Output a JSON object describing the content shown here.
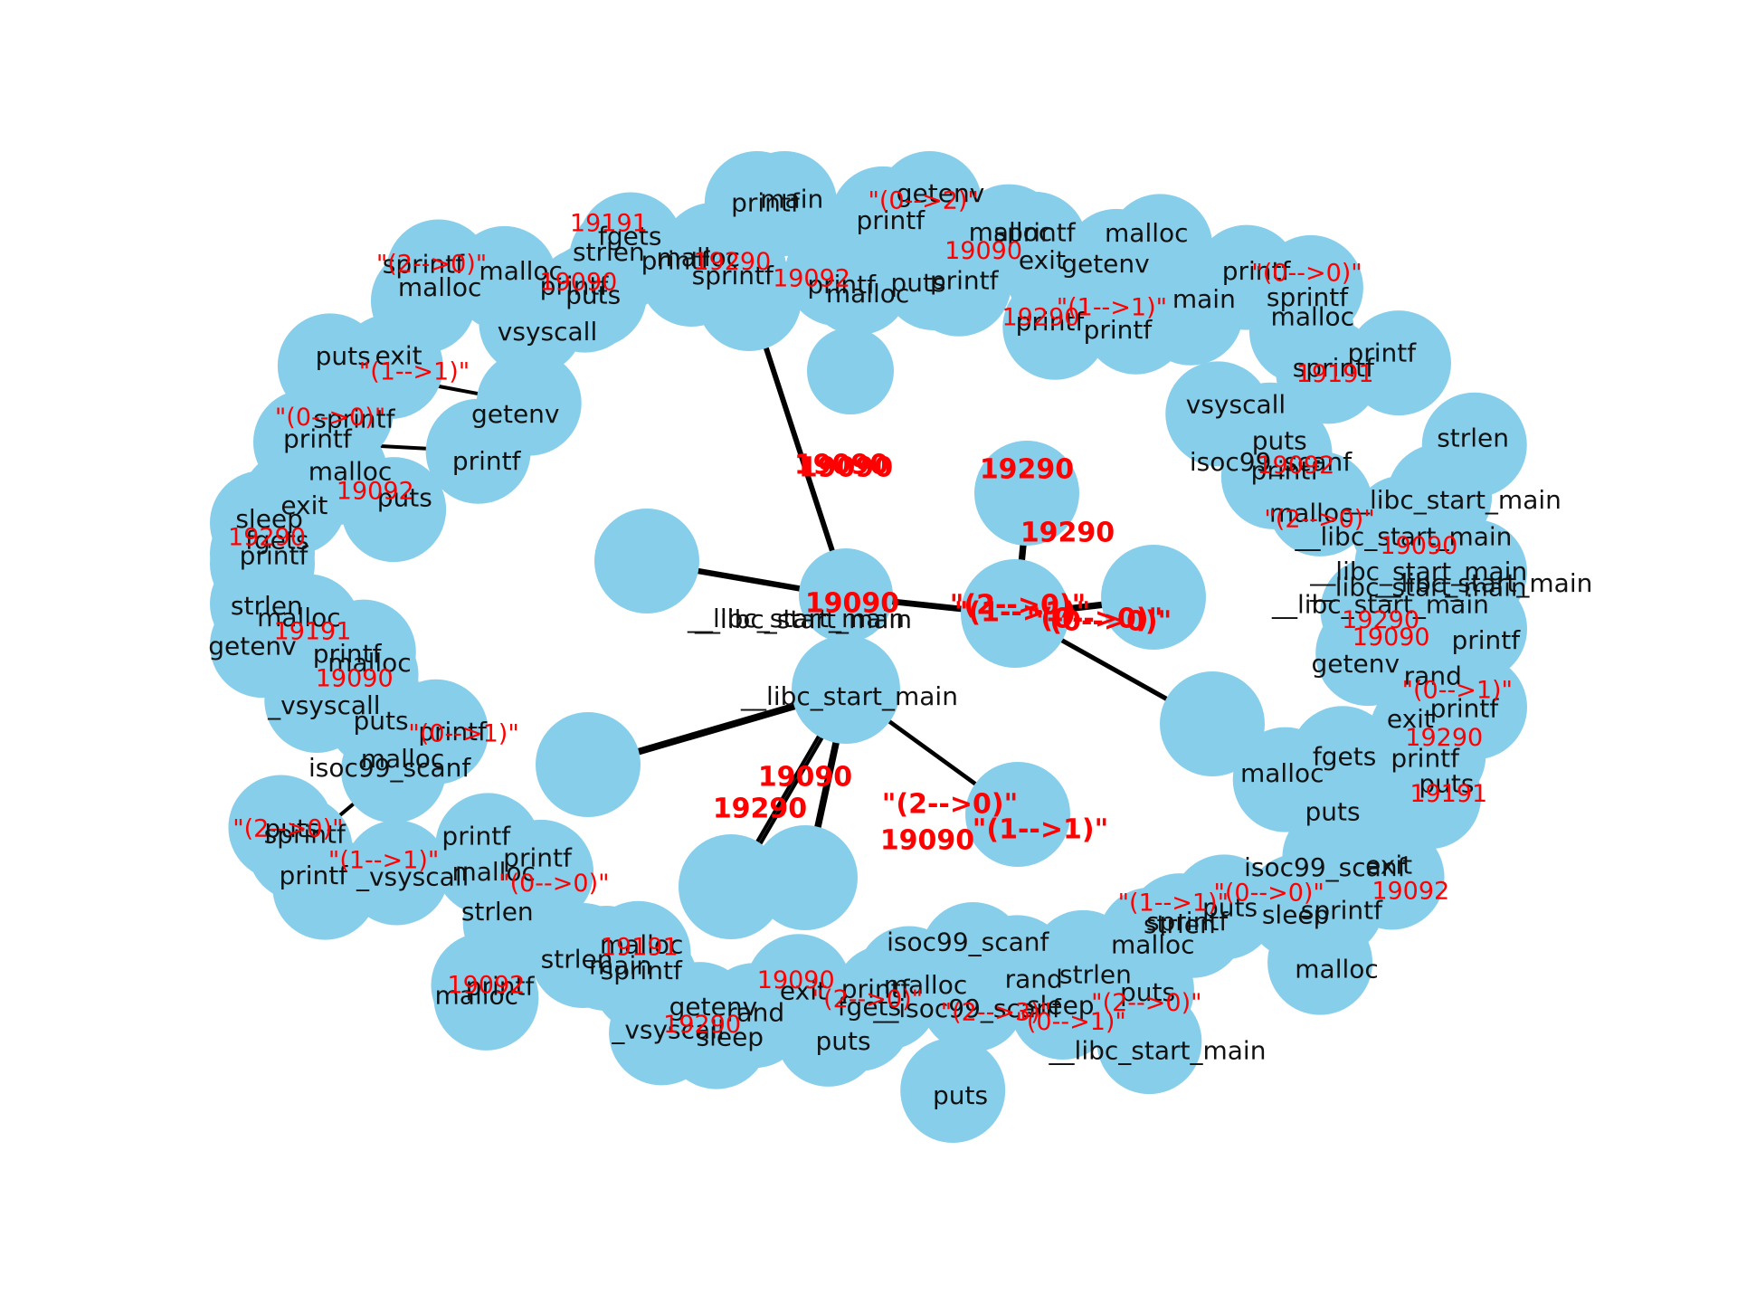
{
  "graph": {
    "node_color": "#87ceeb",
    "edge_color": "#000000",
    "node_label_color": "#111111",
    "edge_label_color": "#ff0000",
    "center_labels": [
      "__libc_start_main",
      "__libc_start_main",
      "__libc_start_main"
    ],
    "hub_edge_labels": [
      "19090",
      "19290",
      "19090",
      "19290",
      "19090",
      "\"(2-->0)\"",
      "19090",
      "\"(1-->1)\"",
      "\"(2-->0)\"",
      "\"(1-->1)\"",
      "\"(0-->0)\"",
      "\"(0-->0)\"",
      "19290",
      "19090"
    ],
    "ring_node_labels": [
      "printf",
      "getenv",
      "rand",
      "printf",
      "exit",
      "printf",
      "fgets",
      "puts",
      "malloc",
      "puts",
      "exit",
      "isoc99_scanf",
      "sprintf",
      "sleep",
      "malloc",
      "puts",
      "sprintf",
      "strlen",
      "malloc",
      "puts",
      "__libc_start_main",
      "strlen",
      "sleep",
      "rand",
      "isoc99_scanf",
      "__isoc99_scanf",
      "puts",
      "malloc",
      "printf",
      "fgets",
      "puts",
      "exit",
      "rand",
      "sleep",
      "getenv",
      "_vsyscall",
      "sprintf",
      "malloc",
      "main",
      "strlen",
      "printf",
      "malloc",
      "strlen",
      "printf",
      "malloc",
      "printf",
      "_vsyscall",
      "printf",
      "sprintf",
      "puts",
      "malloc",
      "isoc99_scanf",
      "printf",
      "puts",
      "_vsyscall",
      "malloc",
      "printf",
      "getenv",
      "malloc",
      "strlen",
      "printf",
      "fgets",
      "sleep",
      "exit",
      "puts",
      "malloc",
      "printf",
      "sprintf",
      "printf",
      "puts",
      "exit",
      "getenv",
      "malloc",
      "sprintf",
      "vsyscall",
      "malloc",
      "printf",
      "puts",
      "strlen",
      "fgets",
      "printf",
      "malloc",
      "sprintf",
      "printf",
      "main",
      "printf",
      "malloc",
      "printf",
      "getenv",
      "puts",
      "printf",
      "malloc",
      "sprintf",
      "exit",
      "printf",
      "getenv",
      "malloc",
      "printf",
      "main",
      "printf",
      "sprintf",
      "malloc",
      "vsyscall",
      "sprintf",
      "printf",
      "puts",
      "isoc99_scanf",
      "printf",
      "strlen",
      "malloc",
      "__libc_start_main",
      "__libc_start_main",
      "__libc_start_main",
      "__libc_start_main",
      "__libc_start_main",
      "__libc_start_main"
    ],
    "ring_edge_labels": [
      "19090",
      "19290",
      "19191",
      "19092",
      "\"(0-->0)\"",
      "\"(1-->1)\"",
      "\"(2-->0)\"",
      "\"(0-->1)\"",
      "\"(2-->3)\"",
      "\"(2-->0)\"",
      "19090",
      "19290",
      "19191",
      "19092",
      "\"(0-->0)\"",
      "\"(1-->1)\"",
      "\"(2-->0)\"",
      "\"(0-->1)\"",
      "19090",
      "19191",
      "19290",
      "19092",
      "\"(0-->0)\"",
      "\"(1-->1)\"",
      "\"(2-->0)\"",
      "19090",
      "19191",
      "19290",
      "19092",
      "\"(0-->2)\"",
      "19090",
      "19290",
      "\"(1-->1)\"",
      "\"(0-->0)\"",
      "19191",
      "19092",
      "\"(2-->0)\"",
      "19090",
      "19290",
      "\"(0-->1)\""
    ]
  }
}
